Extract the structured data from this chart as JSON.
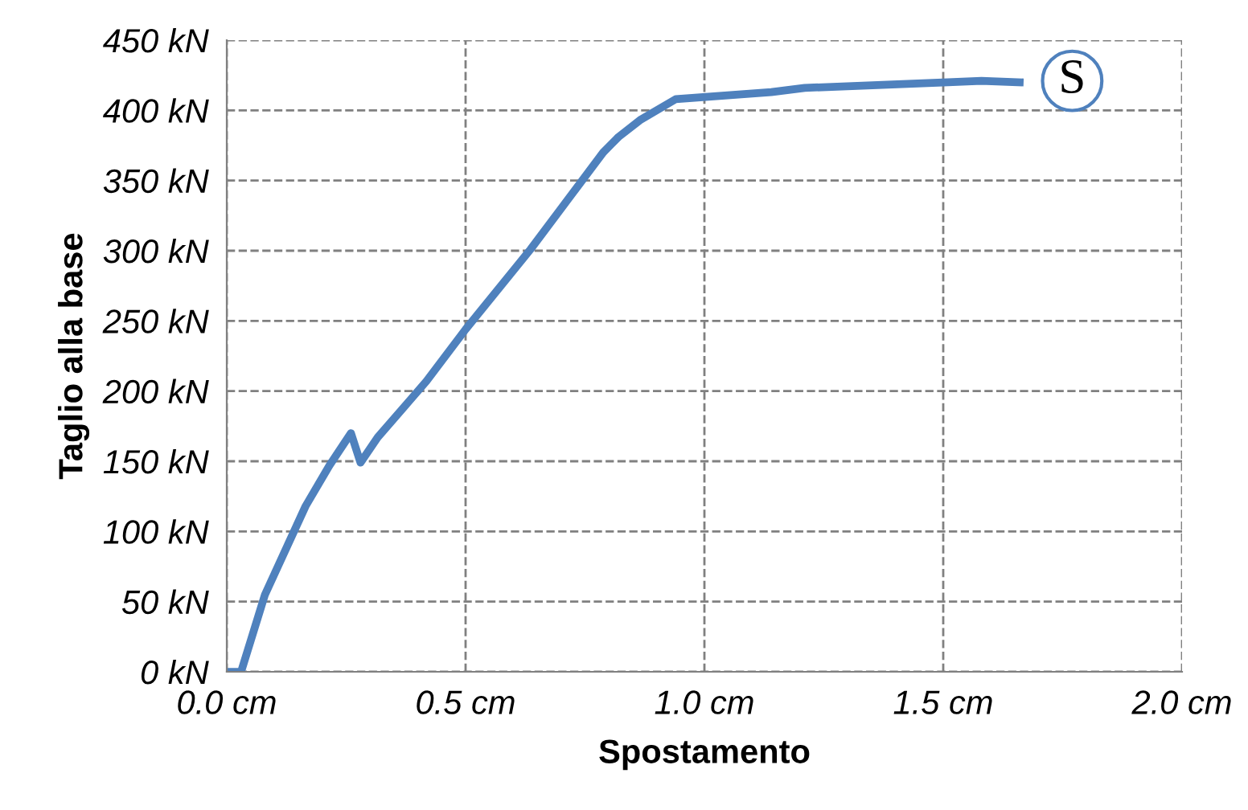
{
  "chart_data": {
    "type": "line",
    "xlabel": "Spostamento",
    "ylabel": "Taglio alla base",
    "x": [
      0.0,
      0.03,
      0.08,
      0.165,
      0.215,
      0.26,
      0.28,
      0.316,
      0.418,
      0.5,
      0.636,
      0.788,
      0.82,
      0.865,
      0.94,
      1.14,
      1.21,
      1.51,
      1.58,
      1.66
    ],
    "series": [
      {
        "color": "#4f81bd",
        "values": [
          0,
          0,
          55,
          118,
          147,
          170,
          149,
          167,
          207,
          244,
          301,
          370,
          381,
          393,
          408,
          413,
          416,
          420,
          421,
          420
        ]
      }
    ],
    "xlim": [
      0,
      2
    ],
    "xticks": [
      {
        "value": 0,
        "label": "0.0 cm"
      },
      {
        "value": 0.5,
        "label": "0.5 cm"
      },
      {
        "value": 1,
        "label": "1.0 cm"
      },
      {
        "value": 1.5,
        "label": "1.5 cm"
      },
      {
        "value": 2,
        "label": "2.0 cm"
      }
    ],
    "ylim": [
      0,
      450
    ],
    "yticks": [
      {
        "value": 0,
        "label": "0 kN"
      },
      {
        "value": 50,
        "label": "50 kN"
      },
      {
        "value": 100,
        "label": "100 kN"
      },
      {
        "value": 150,
        "label": "150 kN"
      },
      {
        "value": 200,
        "label": "200 kN"
      },
      {
        "value": 250,
        "label": "250 kN"
      },
      {
        "value": 300,
        "label": "300 kN"
      },
      {
        "value": 350,
        "label": "350 kN"
      },
      {
        "value": 400,
        "label": "400 kN"
      },
      {
        "value": 450,
        "label": "450 kN"
      }
    ],
    "grid": true,
    "marker": "none",
    "annotations": [
      {
        "text": "S",
        "x": 1.77,
        "y": 421
      }
    ]
  }
}
